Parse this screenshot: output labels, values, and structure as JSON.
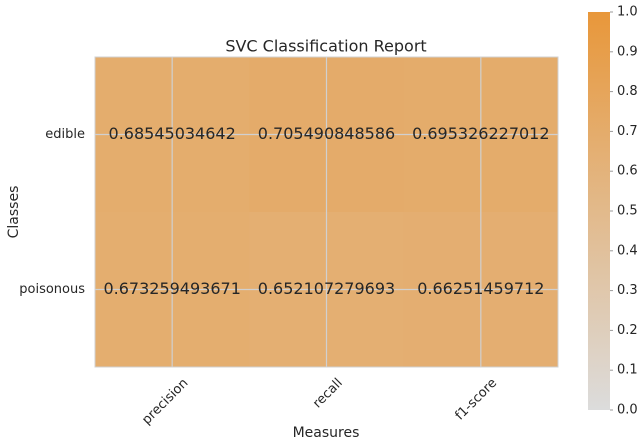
{
  "chart_data": {
    "type": "heatmap",
    "title": "SVC Classification Report",
    "xlabel": "Measures",
    "ylabel": "Classes",
    "x_categories": [
      "precision",
      "recall",
      "f1-score"
    ],
    "y_categories": [
      "edible",
      "poisonous"
    ],
    "values": [
      [
        0.68545034642,
        0.705490848586,
        0.695326227012
      ],
      [
        0.673259493671,
        0.652107279693,
        0.66251459712
      ]
    ],
    "colors": [
      "#dcdcdc",
      "#e8973a"
    ],
    "clim": [
      0,
      1
    ],
    "cticks": [
      {
        "value": 0,
        "label": "0.0"
      },
      {
        "value": 0.1,
        "label": "0.1"
      },
      {
        "value": 0.2,
        "label": "0.2"
      },
      {
        "value": 0.3,
        "label": "0.3"
      },
      {
        "value": 0.4,
        "label": "0.4"
      },
      {
        "value": 0.5,
        "label": "0.5"
      },
      {
        "value": 0.6,
        "label": "0.6"
      },
      {
        "value": 0.7,
        "label": "0.7"
      },
      {
        "value": 0.8,
        "label": "0.8"
      },
      {
        "value": 0.9,
        "label": "0.9"
      },
      {
        "value": 1,
        "label": "1.0"
      }
    ],
    "grid": true
  }
}
